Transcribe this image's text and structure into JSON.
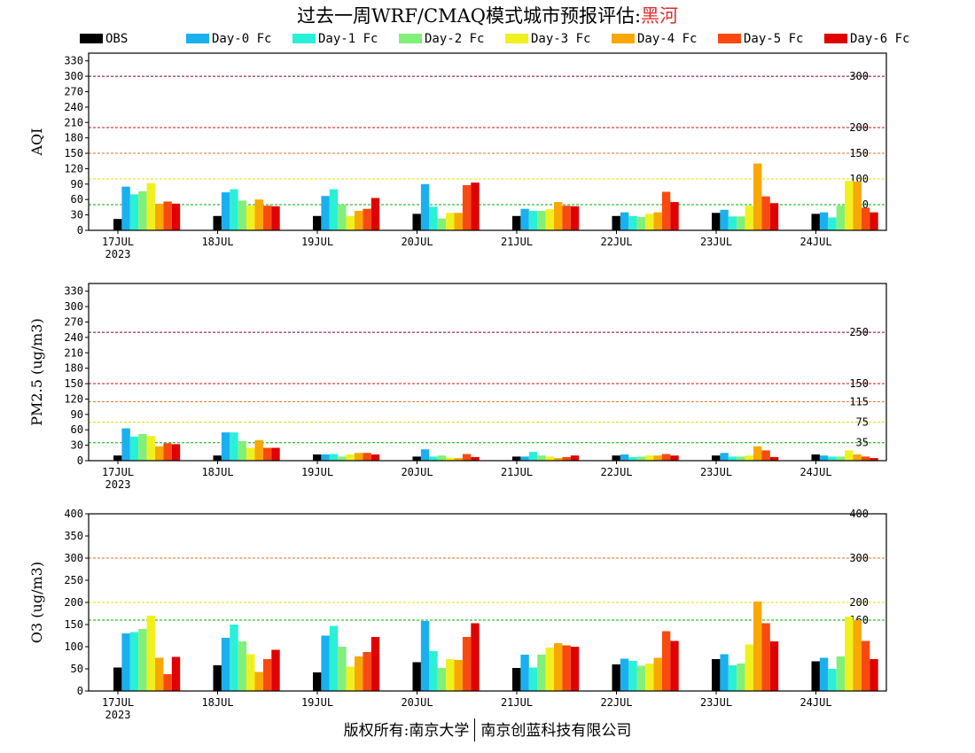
{
  "title": {
    "prefix": "过去一周WRF/CMAQ模式城市预报评估:",
    "station": "黑河"
  },
  "legend": [
    {
      "name": "OBS",
      "color": "#000000"
    },
    {
      "name": "Day-0 Fc",
      "color": "#1ab0f0"
    },
    {
      "name": "Day-1 Fc",
      "color": "#2af0d8"
    },
    {
      "name": "Day-2 Fc",
      "color": "#80f07a"
    },
    {
      "name": "Day-3 Fc",
      "color": "#f0f020"
    },
    {
      "name": "Day-4 Fc",
      "color": "#f8a800"
    },
    {
      "name": "Day-5 Fc",
      "color": "#f84a10"
    },
    {
      "name": "Day-6 Fc",
      "color": "#e00000"
    }
  ],
  "chart_data": [
    {
      "type": "bar",
      "ylabel": "AQI",
      "categories": [
        "17JUL",
        "18JUL",
        "19JUL",
        "20JUL",
        "21JUL",
        "22JUL",
        "23JUL",
        "24JUL"
      ],
      "year_label": "2023",
      "ylim": [
        0,
        345
      ],
      "yticks": [
        0,
        30,
        60,
        90,
        120,
        150,
        180,
        210,
        240,
        270,
        300,
        330
      ],
      "reference_lines": [
        {
          "value": 300,
          "label": "300",
          "color": "#800020"
        },
        {
          "value": 200,
          "label": "200",
          "color": "#cc1010"
        },
        {
          "value": 150,
          "label": "150",
          "color": "#e07020"
        },
        {
          "value": 100,
          "label": "100",
          "color": "#e8e000"
        },
        {
          "value": 50,
          "label": "50",
          "color": "#00b000"
        }
      ],
      "series": [
        {
          "name": "OBS",
          "values": [
            22,
            28,
            28,
            32,
            28,
            28,
            34,
            32
          ]
        },
        {
          "name": "Day-0 Fc",
          "values": [
            85,
            74,
            67,
            90,
            42,
            35,
            40,
            35
          ]
        },
        {
          "name": "Day-1 Fc",
          "values": [
            70,
            80,
            80,
            46,
            38,
            28,
            27,
            25
          ]
        },
        {
          "name": "Day-2 Fc",
          "values": [
            76,
            58,
            50,
            23,
            38,
            26,
            27,
            48
          ]
        },
        {
          "name": "Day-3 Fc",
          "values": [
            92,
            48,
            28,
            34,
            41,
            32,
            48,
            96
          ]
        },
        {
          "name": "Day-4 Fc",
          "values": [
            52,
            60,
            38,
            34,
            55,
            35,
            130,
            95
          ]
        },
        {
          "name": "Day-5 Fc",
          "values": [
            56,
            48,
            42,
            88,
            48,
            75,
            66,
            44
          ]
        },
        {
          "name": "Day-6 Fc",
          "values": [
            52,
            47,
            63,
            93,
            47,
            55,
            53,
            35
          ]
        }
      ]
    },
    {
      "type": "bar",
      "ylabel": "PM2.5 (ug/m3)",
      "categories": [
        "17JUL",
        "18JUL",
        "19JUL",
        "20JUL",
        "21JUL",
        "22JUL",
        "23JUL",
        "24JUL"
      ],
      "year_label": "2023",
      "ylim": [
        0,
        345
      ],
      "yticks": [
        0,
        30,
        60,
        90,
        120,
        150,
        180,
        210,
        240,
        270,
        300,
        330
      ],
      "reference_lines": [
        {
          "value": 250,
          "label": "250",
          "color": "#800020"
        },
        {
          "value": 150,
          "label": "150",
          "color": "#cc1010"
        },
        {
          "value": 115,
          "label": "115",
          "color": "#e07020"
        },
        {
          "value": 75,
          "label": "75",
          "color": "#e8e000"
        },
        {
          "value": 35,
          "label": "35",
          "color": "#00b000"
        }
      ],
      "series": [
        {
          "name": "OBS",
          "values": [
            10,
            10,
            12,
            8,
            8,
            10,
            10,
            12
          ]
        },
        {
          "name": "Day-0 Fc",
          "values": [
            63,
            55,
            12,
            22,
            8,
            12,
            15,
            10
          ]
        },
        {
          "name": "Day-1 Fc",
          "values": [
            47,
            55,
            13,
            8,
            17,
            7,
            8,
            8
          ]
        },
        {
          "name": "Day-2 Fc",
          "values": [
            52,
            38,
            8,
            10,
            10,
            8,
            8,
            8
          ]
        },
        {
          "name": "Day-3 Fc",
          "values": [
            48,
            25,
            12,
            6,
            8,
            10,
            10,
            20
          ]
        },
        {
          "name": "Day-4 Fc",
          "values": [
            28,
            40,
            15,
            5,
            5,
            10,
            28,
            12
          ]
        },
        {
          "name": "Day-5 Fc",
          "values": [
            34,
            25,
            15,
            13,
            7,
            13,
            20,
            8
          ]
        },
        {
          "name": "Day-6 Fc",
          "values": [
            32,
            25,
            12,
            7,
            10,
            10,
            7,
            5
          ]
        }
      ]
    },
    {
      "type": "bar",
      "ylabel": "O3 (ug/m3)",
      "categories": [
        "17JUL",
        "18JUL",
        "19JUL",
        "20JUL",
        "21JUL",
        "22JUL",
        "23JUL",
        "24JUL"
      ],
      "year_label": "2023",
      "ylim": [
        0,
        400
      ],
      "yticks": [
        0,
        50,
        100,
        150,
        200,
        250,
        300,
        350,
        400
      ],
      "reference_lines": [
        {
          "value": 400,
          "label": "400",
          "color": "#800020"
        },
        {
          "value": 300,
          "label": "300",
          "color": "#e07020"
        },
        {
          "value": 200,
          "label": "200",
          "color": "#e8e000"
        },
        {
          "value": 160,
          "label": "160",
          "color": "#00b000"
        }
      ],
      "series": [
        {
          "name": "OBS",
          "values": [
            53,
            58,
            42,
            65,
            52,
            60,
            72,
            67
          ]
        },
        {
          "name": "Day-0 Fc",
          "values": [
            130,
            120,
            125,
            158,
            82,
            73,
            83,
            75
          ]
        },
        {
          "name": "Day-1 Fc",
          "values": [
            133,
            150,
            147,
            90,
            53,
            68,
            58,
            50
          ]
        },
        {
          "name": "Day-2 Fc",
          "values": [
            140,
            112,
            100,
            52,
            82,
            57,
            62,
            78
          ]
        },
        {
          "name": "Day-3 Fc",
          "values": [
            170,
            83,
            55,
            72,
            98,
            62,
            105,
            168
          ]
        },
        {
          "name": "Day-4 Fc",
          "values": [
            75,
            43,
            78,
            70,
            108,
            75,
            202,
            160
          ]
        },
        {
          "name": "Day-5 Fc",
          "values": [
            38,
            72,
            88,
            122,
            103,
            135,
            153,
            113
          ]
        },
        {
          "name": "Day-6 Fc",
          "values": [
            77,
            93,
            122,
            153,
            100,
            113,
            112,
            72
          ]
        }
      ]
    }
  ],
  "footer": {
    "left": "版权所有:南京大学",
    "right": "南京创蓝科技有限公司"
  }
}
